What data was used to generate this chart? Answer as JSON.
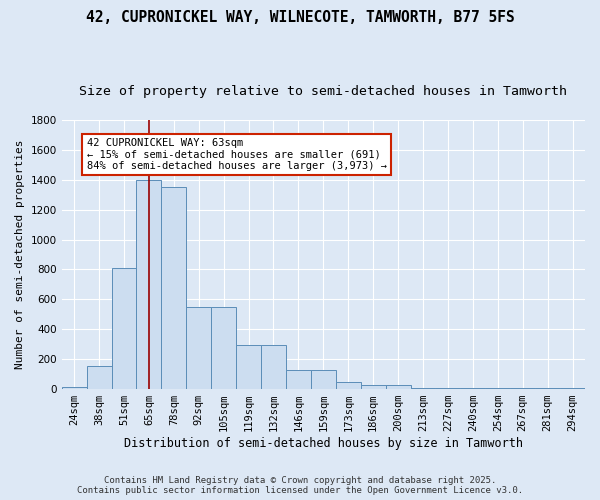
{
  "title1": "42, CUPRONICKEL WAY, WILNECOTE, TAMWORTH, B77 5FS",
  "title2": "Size of property relative to semi-detached houses in Tamworth",
  "xlabel": "Distribution of semi-detached houses by size in Tamworth",
  "ylabel": "Number of semi-detached properties",
  "categories": [
    "24sqm",
    "38sqm",
    "51sqm",
    "65sqm",
    "78sqm",
    "92sqm",
    "105sqm",
    "119sqm",
    "132sqm",
    "146sqm",
    "159sqm",
    "173sqm",
    "186sqm",
    "200sqm",
    "213sqm",
    "227sqm",
    "240sqm",
    "254sqm",
    "267sqm",
    "281sqm",
    "294sqm"
  ],
  "values": [
    15,
    155,
    810,
    1400,
    1350,
    550,
    550,
    295,
    295,
    125,
    125,
    50,
    30,
    30,
    10,
    10,
    10,
    10,
    5,
    5,
    10
  ],
  "bar_color": "#ccddf0",
  "bar_edge_color": "#5b8db8",
  "bg_color": "#dde8f5",
  "grid_color": "#ffffff",
  "vline_x": 3.5,
  "vline_color": "#990000",
  "annotation_text": "42 CUPRONICKEL WAY: 63sqm\n← 15% of semi-detached houses are smaller (691)\n84% of semi-detached houses are larger (3,973) →",
  "annotation_box_facecolor": "#ffffff",
  "annotation_box_edgecolor": "#cc2200",
  "ylim": [
    0,
    1800
  ],
  "yticks": [
    0,
    200,
    400,
    600,
    800,
    1000,
    1200,
    1400,
    1600,
    1800
  ],
  "footnote": "Contains HM Land Registry data © Crown copyright and database right 2025.\nContains public sector information licensed under the Open Government Licence v3.0.",
  "title1_fontsize": 10.5,
  "title2_fontsize": 9.5,
  "xlabel_fontsize": 8.5,
  "ylabel_fontsize": 8,
  "tick_fontsize": 7.5,
  "annot_fontsize": 7.5,
  "footnote_fontsize": 6.5
}
